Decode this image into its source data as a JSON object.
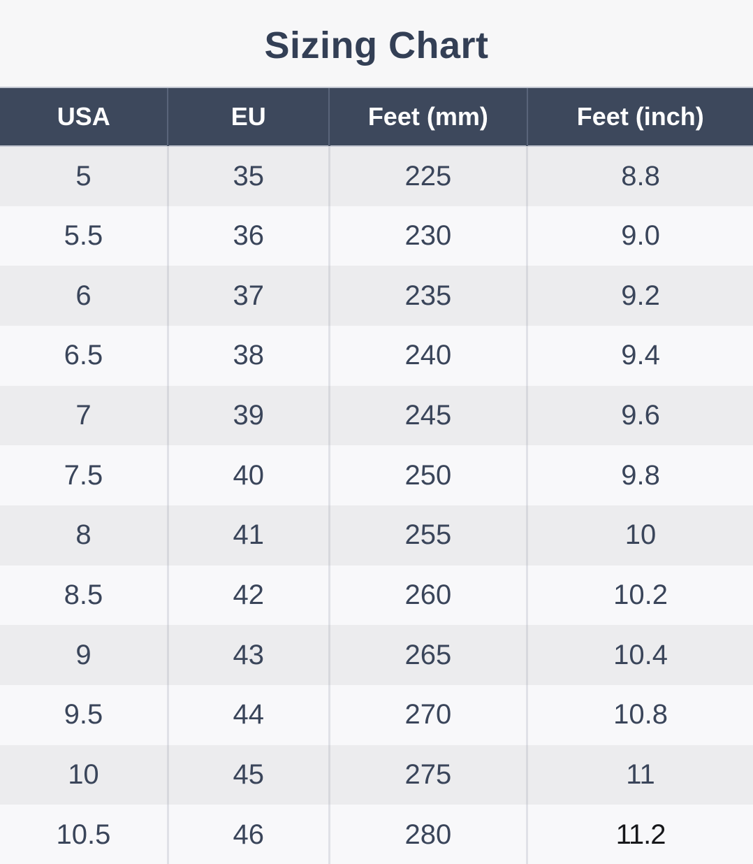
{
  "title": "Sizing Chart",
  "colors": {
    "page_bg": "#f7f7f8",
    "header_bg": "#3d485c",
    "header_text": "#ffffff",
    "title_text": "#333f55",
    "cell_text": "#3a455a",
    "row_odd": "#ececee",
    "row_even": "#f8f8fa",
    "last_cell_text": "#17181b"
  },
  "chart_data": {
    "type": "table",
    "title": "Sizing Chart",
    "columns": [
      "USA",
      "EU",
      "Feet (mm)",
      "Feet (inch)"
    ],
    "column_widths_pct": [
      22.3,
      21.4,
      26.3,
      30.0
    ],
    "rows": [
      [
        "5",
        "35",
        "225",
        "8.8"
      ],
      [
        "5.5",
        "36",
        "230",
        "9.0"
      ],
      [
        "6",
        "37",
        "235",
        "9.2"
      ],
      [
        "6.5",
        "38",
        "240",
        "9.4"
      ],
      [
        "7",
        "39",
        "245",
        "9.6"
      ],
      [
        "7.5",
        "40",
        "250",
        "9.8"
      ],
      [
        "8",
        "41",
        "255",
        "10"
      ],
      [
        "8.5",
        "42",
        "260",
        "10.2"
      ],
      [
        "9",
        "43",
        "265",
        "10.4"
      ],
      [
        "9.5",
        "44",
        "270",
        "10.8"
      ],
      [
        "10",
        "45",
        "275",
        "11"
      ],
      [
        "10.5",
        "46",
        "280",
        "11.2"
      ]
    ]
  }
}
